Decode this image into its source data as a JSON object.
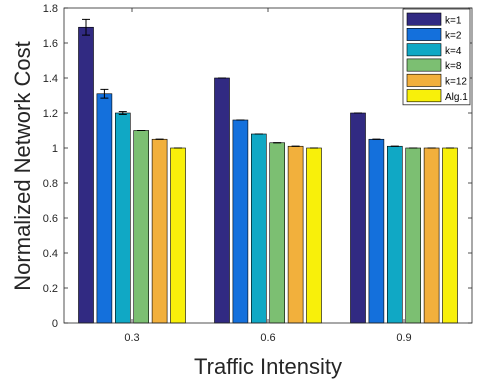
{
  "chart_data": {
    "type": "bar",
    "categories": [
      "0.3",
      "0.6",
      "0.9"
    ],
    "series": [
      {
        "name": "k=1",
        "color": "#312a82",
        "values": [
          1.69,
          1.4,
          1.2
        ],
        "error": [
          0.045,
          0.0,
          0.0
        ]
      },
      {
        "name": "k=2",
        "color": "#1470dc",
        "values": [
          1.31,
          1.16,
          1.05
        ],
        "error": [
          0.025,
          0.0,
          0.0
        ]
      },
      {
        "name": "k=4",
        "color": "#10a8c5",
        "values": [
          1.2,
          1.08,
          1.01
        ],
        "error": [
          0.008,
          0.0,
          0.0
        ]
      },
      {
        "name": "k=8",
        "color": "#7cbf72",
        "values": [
          1.1,
          1.03,
          1.0
        ],
        "error": [
          0.0,
          0.0,
          0.0
        ]
      },
      {
        "name": "k=12",
        "color": "#f2b03c",
        "values": [
          1.05,
          1.01,
          1.0
        ],
        "error": [
          0.0,
          0.0,
          0.0
        ]
      },
      {
        "name": "Alg.1",
        "color": "#f8f00a",
        "values": [
          1.0,
          1.0,
          1.0
        ],
        "error": [
          0.0,
          0.0,
          0.0
        ]
      }
    ],
    "xlabel": "Traffic Intensity",
    "ylabel": "Normalized Network Cost",
    "ylim": [
      0,
      1.8
    ],
    "yticks": [
      "0",
      "0.2",
      "0.4",
      "0.6",
      "0.8",
      "1",
      "1.2",
      "1.4",
      "1.6",
      "1.8"
    ],
    "grid": false,
    "legend_position": "top-right"
  }
}
